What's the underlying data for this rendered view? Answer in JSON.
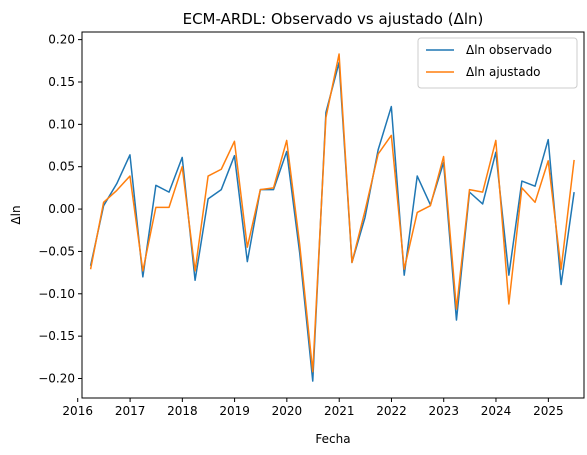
{
  "chart_data": {
    "type": "line",
    "title": "ECM-ARDL: Observado vs ajustado (Δln)",
    "xlabel": "Fecha",
    "ylabel": "Δln",
    "ylim": [
      -0.223,
      0.209
    ],
    "xlim": [
      "2016-01-31",
      "2025-09-07"
    ],
    "grid": false,
    "legend_position": "top-right",
    "x_ticks": [
      "2016",
      "2017",
      "2018",
      "2019",
      "2020",
      "2021",
      "2022",
      "2023",
      "2024",
      "2025"
    ],
    "y_ticks": [
      -0.2,
      -0.15,
      -0.1,
      -0.05,
      0.0,
      0.05,
      0.1,
      0.15,
      0.2
    ],
    "y_tick_labels": [
      "−0.20",
      "−0.15",
      "−0.10",
      "−0.05",
      "0.00",
      "0.05",
      "0.10",
      "0.15",
      "0.20"
    ],
    "x": [
      "2016-03-31",
      "2016-06-30",
      "2016-09-30",
      "2016-12-31",
      "2017-03-31",
      "2017-06-30",
      "2017-09-30",
      "2017-12-31",
      "2018-03-31",
      "2018-06-30",
      "2018-09-30",
      "2018-12-31",
      "2019-03-31",
      "2019-06-30",
      "2019-09-30",
      "2019-12-31",
      "2020-03-31",
      "2020-06-30",
      "2020-09-30",
      "2020-12-31",
      "2021-03-31",
      "2021-06-30",
      "2021-09-30",
      "2021-12-31",
      "2022-03-31",
      "2022-06-30",
      "2022-09-30",
      "2022-12-31",
      "2023-03-31",
      "2023-06-30",
      "2023-09-30",
      "2023-12-31",
      "2024-03-31",
      "2024-06-30",
      "2024-09-30",
      "2024-12-31",
      "2025-03-31",
      "2025-06-30"
    ],
    "series": [
      {
        "name": "Δln observado",
        "color": "#1f77b4",
        "values": [
          -0.067,
          0.004,
          0.03,
          0.064,
          -0.08,
          0.028,
          0.02,
          0.061,
          -0.084,
          0.012,
          0.023,
          0.063,
          -0.062,
          0.023,
          0.023,
          0.068,
          -0.052,
          -0.203,
          0.114,
          0.173,
          -0.063,
          -0.01,
          0.07,
          0.121,
          -0.078,
          0.039,
          0.005,
          0.055,
          -0.131,
          0.02,
          0.006,
          0.067,
          -0.078,
          0.033,
          0.027,
          0.082,
          -0.089,
          0.02
        ]
      },
      {
        "name": "Δln ajustado",
        "color": "#ff7f0e",
        "values": [
          -0.071,
          0.008,
          0.022,
          0.039,
          -0.073,
          0.002,
          0.002,
          0.05,
          -0.073,
          0.039,
          0.047,
          0.08,
          -0.045,
          0.023,
          0.025,
          0.081,
          -0.042,
          -0.192,
          0.108,
          0.183,
          -0.063,
          -0.002,
          0.065,
          0.087,
          -0.071,
          -0.004,
          0.004,
          0.062,
          -0.118,
          0.023,
          0.02,
          0.081,
          -0.112,
          0.025,
          0.008,
          0.057,
          -0.071,
          0.058
        ]
      }
    ]
  }
}
